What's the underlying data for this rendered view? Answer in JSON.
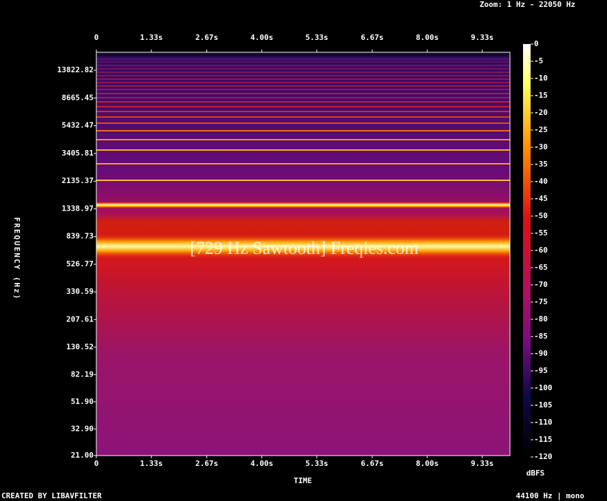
{
  "chart_data": {
    "type": "spectrogram",
    "zoom_label": "Zoom: 1 Hz - 22050 Hz",
    "watermark": "[729 Hz Sawtooth] Freqies.com",
    "x_label": "TIME",
    "y_label": "FREQUENCY (Hz)",
    "colorbar_label": "dBFS",
    "footer_left": "CREATED BY LIBAVFILTER",
    "footer_right": "44100 Hz | mono",
    "xlim": [
      0,
      10
    ],
    "xticks": [
      0,
      {
        "value": 1.33,
        "label": "1.33s"
      },
      {
        "value": 2.67,
        "label": "2.67s"
      },
      {
        "value": 4.0,
        "label": "4.00s"
      },
      {
        "value": 5.33,
        "label": "5.33s"
      },
      {
        "value": 6.67,
        "label": "6.67s"
      },
      {
        "value": 8.0,
        "label": "8.00s"
      },
      {
        "value": 9.33,
        "label": "9.33s"
      }
    ],
    "ylim": [
      21,
      18700
    ],
    "y_log": true,
    "yticks": [
      {
        "value": 21,
        "label": "21.00"
      },
      {
        "value": 32.9,
        "label": "32.90"
      },
      {
        "value": 51.9,
        "label": "51.90"
      },
      {
        "value": 82.19,
        "label": "82.19"
      },
      {
        "value": 130.52,
        "label": "130.52"
      },
      {
        "value": 207.61,
        "label": "207.61"
      },
      {
        "value": 330.59,
        "label": "330.59"
      },
      {
        "value": 526.77,
        "label": "526.77"
      },
      {
        "value": 839.73,
        "label": "839.73"
      },
      {
        "value": 1338.97,
        "label": "1338.97"
      },
      {
        "value": 2135.37,
        "label": "2135.37"
      },
      {
        "value": 3405.81,
        "label": "3405.81"
      },
      {
        "value": 5432.47,
        "label": "5432.47"
      },
      {
        "value": 8665.45,
        "label": "8665.45"
      },
      {
        "value": 13822.82,
        "label": "13822.82"
      }
    ],
    "clim": [
      -120,
      0
    ],
    "cticks": [
      0,
      -5,
      -10,
      -15,
      -20,
      -25,
      -30,
      -35,
      -40,
      -45,
      -50,
      -55,
      -60,
      -65,
      -70,
      -75,
      -80,
      -85,
      -90,
      -95,
      -100,
      -105,
      -110,
      -115,
      -120
    ]
  }
}
